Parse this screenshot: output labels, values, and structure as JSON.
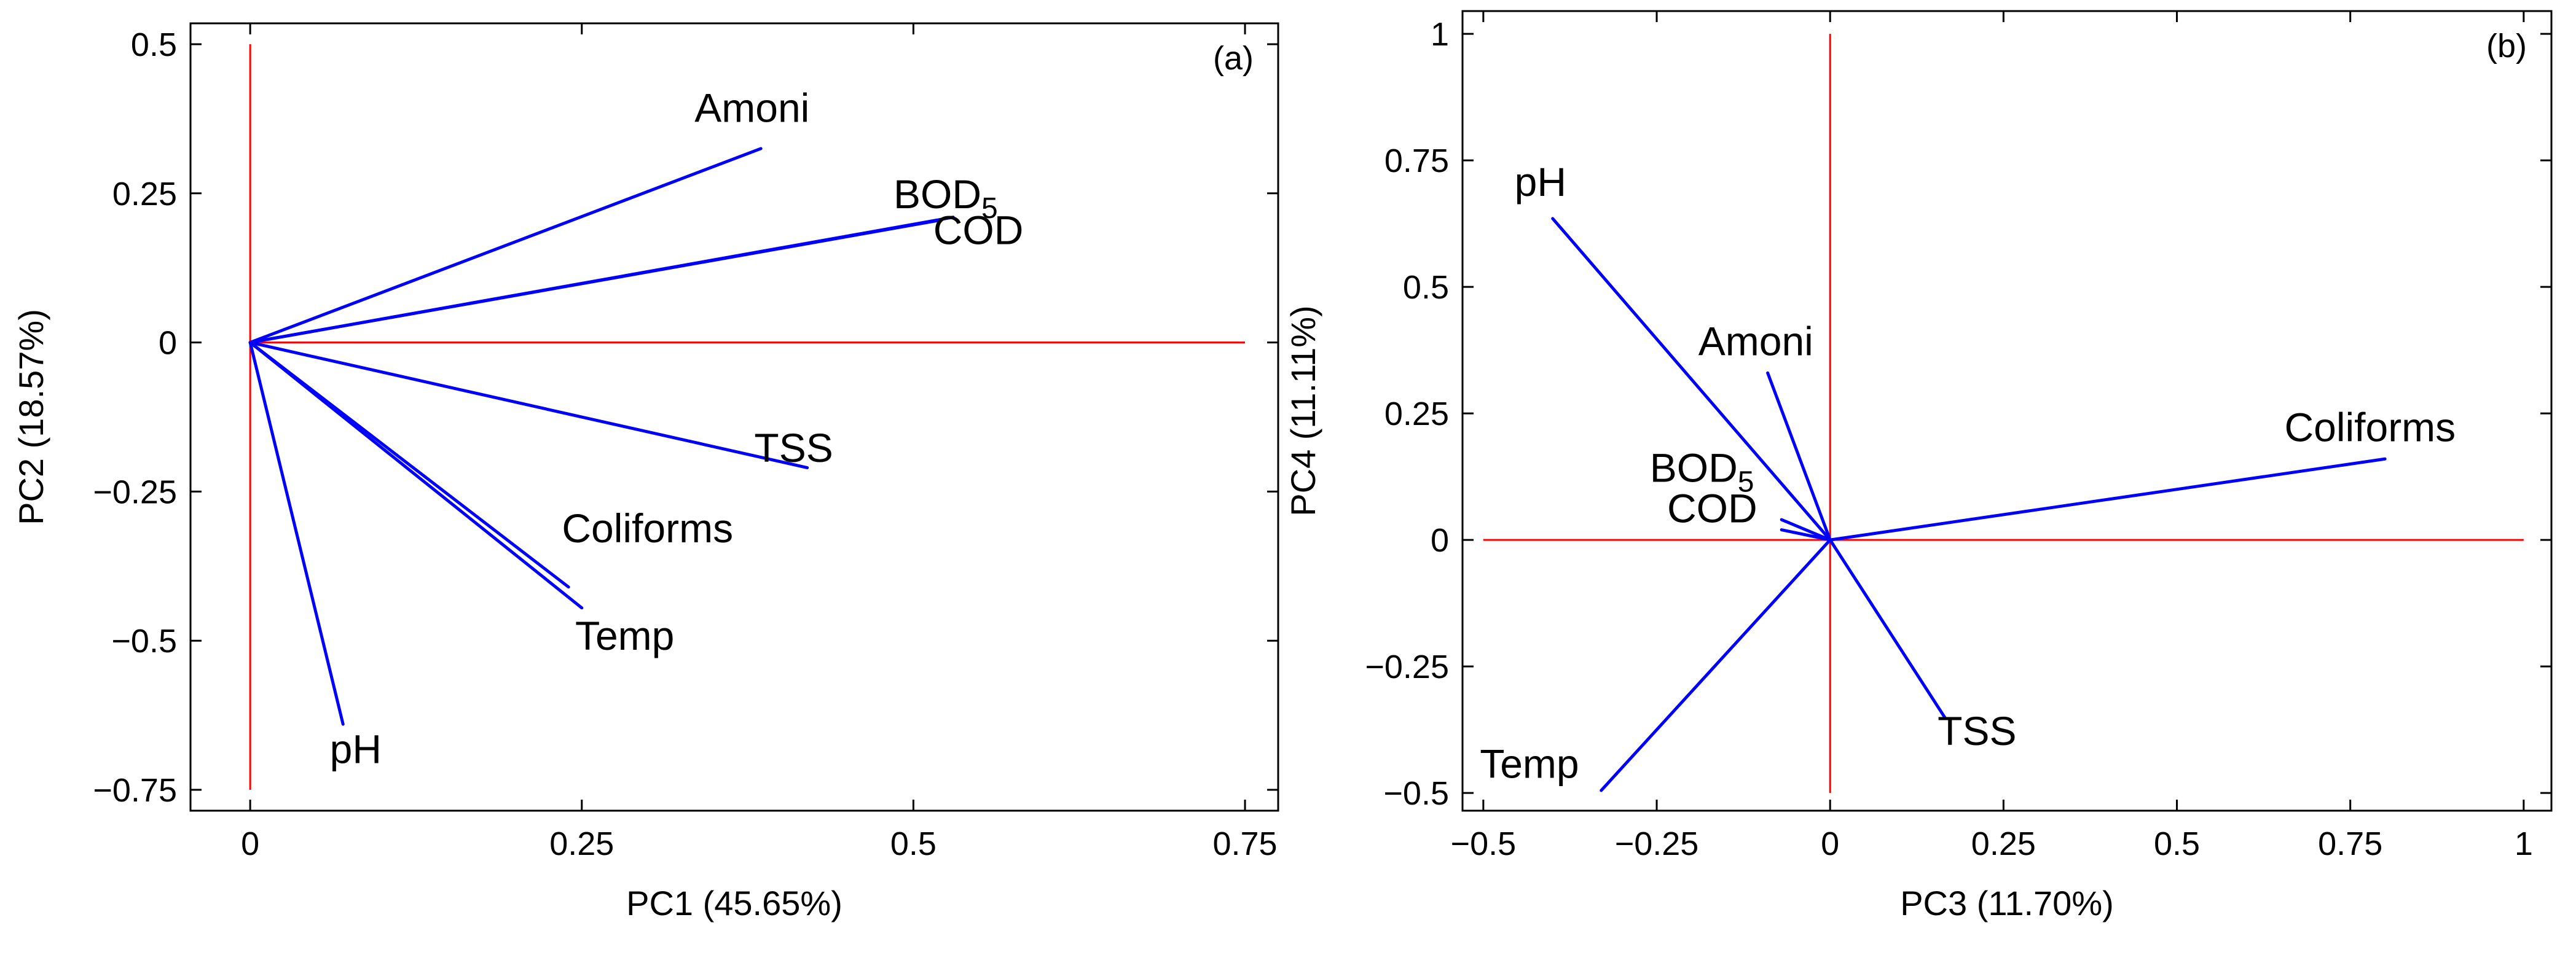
{
  "colors": {
    "vector": "#0000ff",
    "reference": "#ff0000",
    "frame": "#000000"
  },
  "chart_data": [
    {
      "type": "biplot",
      "panel_label": "(a)",
      "xlabel": "PC1 (45.65%)",
      "ylabel": "PC2 (18.57%)",
      "xlim": [
        -0.045,
        0.775
      ],
      "ylim": [
        -0.785,
        0.535
      ],
      "xticks": [
        0,
        0.25,
        0.5,
        0.75
      ],
      "xtick_labels": [
        "0",
        "0.25",
        "0.5",
        "0.75"
      ],
      "yticks": [
        -0.75,
        -0.5,
        -0.25,
        0,
        0.25,
        0.5
      ],
      "ytick_labels": [
        "−0.75",
        "−0.5",
        "−0.25",
        "0",
        "0.25",
        "0.5"
      ],
      "reference_lines": {
        "h_from": 0,
        "h_to": 0.75,
        "v_from": -0.75,
        "v_to": 0.5
      },
      "vectors": [
        {
          "name": "Amoni",
          "label": "Amoni",
          "x": 0.385,
          "y": 0.325,
          "label_pos": [
            0.335,
            0.37
          ]
        },
        {
          "name": "BOD5",
          "label": "BOD",
          "sub": "5",
          "x": 0.52,
          "y": 0.205,
          "label_pos": [
            0.485,
            0.225
          ]
        },
        {
          "name": "COD",
          "label": "COD",
          "x": 0.53,
          "y": 0.21,
          "label_pos": [
            0.515,
            0.165
          ]
        },
        {
          "name": "TSS",
          "label": "TSS",
          "x": 0.42,
          "y": -0.21,
          "label_pos": [
            0.38,
            -0.2
          ]
        },
        {
          "name": "Coliforms",
          "label": "Coliforms",
          "x": 0.24,
          "y": -0.41,
          "label_pos": [
            0.235,
            -0.335
          ]
        },
        {
          "name": "Temp",
          "label": "Temp",
          "x": 0.25,
          "y": -0.445,
          "label_pos": [
            0.245,
            -0.515
          ]
        },
        {
          "name": "pH",
          "label": "pH",
          "x": 0.07,
          "y": -0.64,
          "label_pos": [
            0.06,
            -0.705
          ]
        }
      ]
    },
    {
      "type": "biplot",
      "panel_label": "(b)",
      "xlabel": "PC3 (11.70%)",
      "ylabel": "PC4 (11.11%)",
      "xlim": [
        -0.53,
        1.04
      ],
      "ylim": [
        -0.535,
        1.045
      ],
      "xticks": [
        -0.5,
        -0.25,
        0,
        0.25,
        0.5,
        0.75,
        1
      ],
      "xtick_labels": [
        "−0.5",
        "−0.25",
        "0",
        "0.25",
        "0.5",
        "0.75",
        "1"
      ],
      "yticks": [
        -0.5,
        -0.25,
        0,
        0.25,
        0.5,
        0.75,
        1
      ],
      "ytick_labels": [
        "−0.5",
        "−0.25",
        "0",
        "0.25",
        "0.5",
        "0.75",
        "1"
      ],
      "reference_lines": {
        "h_from": -0.5,
        "h_to": 1,
        "v_from": -0.5,
        "v_to": 1
      },
      "vectors": [
        {
          "name": "pH",
          "label": "pH",
          "x": -0.4,
          "y": 0.635,
          "label_pos": [
            -0.455,
            0.68
          ]
        },
        {
          "name": "Amoni",
          "label": "Amoni",
          "x": -0.09,
          "y": 0.33,
          "label_pos": [
            -0.19,
            0.365
          ]
        },
        {
          "name": "BOD5",
          "label": "BOD",
          "sub": "5",
          "x": -0.07,
          "y": 0.04,
          "label_pos": [
            -0.26,
            0.115
          ]
        },
        {
          "name": "COD",
          "label": "COD",
          "x": -0.07,
          "y": 0.02,
          "label_pos": [
            -0.235,
            0.035
          ]
        },
        {
          "name": "Coliforms",
          "label": "Coliforms",
          "x": 0.8,
          "y": 0.16,
          "label_pos": [
            0.655,
            0.195
          ]
        },
        {
          "name": "TSS",
          "label": "TSS",
          "x": 0.165,
          "y": -0.35,
          "label_pos": [
            0.155,
            -0.405
          ]
        },
        {
          "name": "Temp",
          "label": "Temp",
          "x": -0.33,
          "y": -0.495,
          "label_pos": [
            -0.505,
            -0.47
          ]
        }
      ]
    }
  ]
}
